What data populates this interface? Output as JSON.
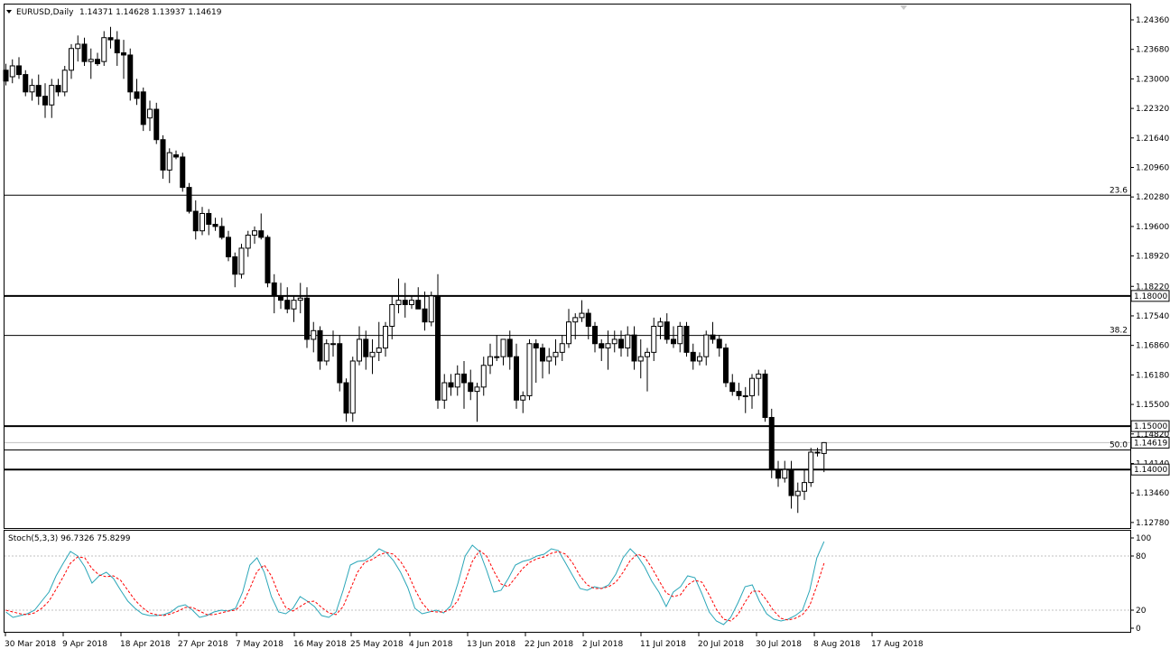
{
  "header": {
    "symbol": "EURUSD,Daily",
    "ohlc": "1.14371 1.14628 1.13937 1.14619",
    "menu_icon": "triangle-down-icon",
    "shift_icon": "chart-shift-triangle-icon"
  },
  "colors": {
    "background": "#ffffff",
    "frame": "#000000",
    "bull_candle": "#ffffff",
    "bear_candle": "#000000",
    "stoch_main": "#2aa6b8",
    "stoch_signal": "#ff0000",
    "level_line": "#c0c0c0"
  },
  "chart_data": [
    {
      "type": "candlestick",
      "title": "EURUSD,Daily",
      "ylim": [
        1.2744,
        1.2467
      ],
      "y_ticks": [
        "1.24360",
        "1.23680",
        "1.23000",
        "1.22320",
        "1.21640",
        "1.20960",
        "1.20280",
        "1.19600",
        "1.18920",
        "1.18220",
        "1.17540",
        "1.16860",
        "1.16180",
        "1.15500",
        "1.14820",
        "1.14140",
        "1.13460",
        "1.12780"
      ],
      "x_ticks": [
        "30 Mar 2018",
        "9 Apr 2018",
        "18 Apr 2018",
        "27 Apr 2018",
        "7 May 2018",
        "16 May 2018",
        "25 May 2018",
        "4 Jun 2018",
        "13 Jun 2018",
        "22 Jun 2018",
        "2 Jul 2018",
        "11 Jul 2018",
        "20 Jul 2018",
        "30 Jul 2018",
        "8 Aug 2018",
        "17 Aug 2018"
      ],
      "candles": [
        [
          1.232,
          1.2335,
          1.2285,
          1.2295
        ],
        [
          1.2305,
          1.2345,
          1.229,
          1.233
        ],
        [
          1.233,
          1.235,
          1.23,
          1.231
        ],
        [
          1.231,
          1.232,
          1.226,
          1.227
        ],
        [
          1.227,
          1.23,
          1.225,
          1.2285
        ],
        [
          1.2285,
          1.231,
          1.224,
          1.226
        ],
        [
          1.226,
          1.229,
          1.221,
          1.224
        ],
        [
          1.224,
          1.23,
          1.221,
          1.2285
        ],
        [
          1.2285,
          1.23,
          1.226,
          1.227
        ],
        [
          1.227,
          1.233,
          1.226,
          1.232
        ],
        [
          1.232,
          1.238,
          1.23,
          1.237
        ],
        [
          1.237,
          1.24,
          1.234,
          1.238
        ],
        [
          1.238,
          1.2395,
          1.233,
          1.234
        ],
        [
          1.234,
          1.237,
          1.23,
          1.2345
        ],
        [
          1.2345,
          1.236,
          1.233,
          1.2335
        ],
        [
          1.234,
          1.241,
          1.233,
          1.2395
        ],
        [
          1.2395,
          1.242,
          1.237,
          1.239
        ],
        [
          1.239,
          1.241,
          1.233,
          1.236
        ],
        [
          1.236,
          1.239,
          1.23,
          1.2355
        ],
        [
          1.2355,
          1.237,
          1.225,
          1.227
        ],
        [
          1.227,
          1.23,
          1.224,
          1.2255
        ],
        [
          1.227,
          1.228,
          1.218,
          1.2195
        ],
        [
          1.221,
          1.225,
          1.218,
          1.223
        ],
        [
          1.223,
          1.2245,
          1.215,
          1.216
        ],
        [
          1.216,
          1.217,
          1.207,
          1.209
        ],
        [
          1.209,
          1.214,
          1.206,
          1.213
        ],
        [
          1.2125,
          1.2135,
          1.2115,
          1.212
        ],
        [
          1.212,
          1.213,
          1.204,
          1.205
        ],
        [
          1.205,
          1.206,
          1.199,
          1.1995
        ],
        [
          1.1995,
          1.202,
          1.193,
          1.195
        ],
        [
          1.195,
          1.2005,
          1.194,
          1.199
        ],
        [
          1.199,
          1.2,
          1.194,
          1.1965
        ],
        [
          1.1965,
          1.198,
          1.195,
          1.196
        ],
        [
          1.196,
          1.198,
          1.193,
          1.1935
        ],
        [
          1.1935,
          1.195,
          1.188,
          1.189
        ],
        [
          1.189,
          1.19,
          1.182,
          1.185
        ],
        [
          1.185,
          1.192,
          1.184,
          1.191
        ],
        [
          1.191,
          1.195,
          1.189,
          1.194
        ],
        [
          1.194,
          1.196,
          1.192,
          1.195
        ],
        [
          1.195,
          1.199,
          1.193,
          1.1935
        ],
        [
          1.1935,
          1.194,
          1.182,
          1.183
        ],
        [
          1.183,
          1.185,
          1.176,
          1.18
        ],
        [
          1.18,
          1.183,
          1.177,
          1.179
        ],
        [
          1.179,
          1.182,
          1.176,
          1.177
        ],
        [
          1.177,
          1.18,
          1.174,
          1.179
        ],
        [
          1.179,
          1.183,
          1.176,
          1.1795
        ],
        [
          1.1795,
          1.182,
          1.168,
          1.17
        ],
        [
          1.17,
          1.174,
          1.167,
          1.172
        ],
        [
          1.172,
          1.173,
          1.163,
          1.165
        ],
        [
          1.165,
          1.17,
          1.164,
          1.169
        ],
        [
          1.169,
          1.172,
          1.166,
          1.169
        ],
        [
          1.169,
          1.171,
          1.158,
          1.16
        ],
        [
          1.16,
          1.161,
          1.151,
          1.153
        ],
        [
          1.153,
          1.166,
          1.151,
          1.165
        ],
        [
          1.165,
          1.173,
          1.164,
          1.17
        ],
        [
          1.17,
          1.172,
          1.163,
          1.166
        ],
        [
          1.166,
          1.17,
          1.162,
          1.167
        ],
        [
          1.167,
          1.174,
          1.165,
          1.168
        ],
        [
          1.168,
          1.174,
          1.166,
          1.173
        ],
        [
          1.173,
          1.18,
          1.17,
          1.178
        ],
        [
          1.178,
          1.184,
          1.176,
          1.179
        ],
        [
          1.179,
          1.183,
          1.175,
          1.178
        ],
        [
          1.178,
          1.18,
          1.177,
          1.179
        ],
        [
          1.179,
          1.182,
          1.177,
          1.177
        ],
        [
          1.177,
          1.181,
          1.172,
          1.174
        ],
        [
          1.174,
          1.181,
          1.173,
          1.18
        ],
        [
          1.18,
          1.185,
          1.154,
          1.156
        ],
        [
          1.156,
          1.162,
          1.154,
          1.16
        ],
        [
          1.16,
          1.162,
          1.157,
          1.159
        ],
        [
          1.159,
          1.164,
          1.157,
          1.162
        ],
        [
          1.162,
          1.165,
          1.154,
          1.16
        ],
        [
          1.16,
          1.163,
          1.156,
          1.158
        ],
        [
          1.158,
          1.16,
          1.151,
          1.159
        ],
        [
          1.159,
          1.166,
          1.157,
          1.164
        ],
        [
          1.164,
          1.169,
          1.162,
          1.166
        ],
        [
          1.166,
          1.171,
          1.165,
          1.166
        ],
        [
          1.166,
          1.17,
          1.164,
          1.17
        ],
        [
          1.17,
          1.172,
          1.163,
          1.166
        ],
        [
          1.166,
          1.169,
          1.154,
          1.156
        ],
        [
          1.156,
          1.158,
          1.153,
          1.157
        ],
        [
          1.157,
          1.17,
          1.156,
          1.169
        ],
        [
          1.169,
          1.17,
          1.16,
          1.168
        ],
        [
          1.168,
          1.169,
          1.161,
          1.165
        ],
        [
          1.165,
          1.168,
          1.162,
          1.166
        ],
        [
          1.166,
          1.17,
          1.164,
          1.167
        ],
        [
          1.167,
          1.171,
          1.165,
          1.169
        ],
        [
          1.169,
          1.177,
          1.168,
          1.174
        ],
        [
          1.174,
          1.176,
          1.17,
          1.175
        ],
        [
          1.175,
          1.179,
          1.174,
          1.176
        ],
        [
          1.176,
          1.177,
          1.17,
          1.173
        ],
        [
          1.173,
          1.174,
          1.167,
          1.169
        ],
        [
          1.169,
          1.17,
          1.165,
          1.168
        ],
        [
          1.168,
          1.172,
          1.163,
          1.169
        ],
        [
          1.169,
          1.172,
          1.167,
          1.17
        ],
        [
          1.17,
          1.172,
          1.166,
          1.168
        ],
        [
          1.168,
          1.173,
          1.166,
          1.171
        ],
        [
          1.171,
          1.173,
          1.163,
          1.165
        ],
        [
          1.165,
          1.17,
          1.161,
          1.166
        ],
        [
          1.166,
          1.168,
          1.158,
          1.167
        ],
        [
          1.167,
          1.175,
          1.165,
          1.173
        ],
        [
          1.173,
          1.175,
          1.17,
          1.174
        ],
        [
          1.174,
          1.176,
          1.169,
          1.17
        ],
        [
          1.17,
          1.173,
          1.168,
          1.169
        ],
        [
          1.169,
          1.174,
          1.167,
          1.173
        ],
        [
          1.173,
          1.174,
          1.166,
          1.167
        ],
        [
          1.167,
          1.169,
          1.163,
          1.165
        ],
        [
          1.165,
          1.167,
          1.164,
          1.166
        ],
        [
          1.166,
          1.172,
          1.164,
          1.171
        ],
        [
          1.171,
          1.174,
          1.169,
          1.17
        ],
        [
          1.17,
          1.171,
          1.166,
          1.168
        ],
        [
          1.168,
          1.169,
          1.159,
          1.16
        ],
        [
          1.16,
          1.162,
          1.157,
          1.158
        ],
        [
          1.158,
          1.16,
          1.156,
          1.157
        ],
        [
          1.157,
          1.159,
          1.153,
          1.157
        ],
        [
          1.157,
          1.162,
          1.154,
          1.161
        ],
        [
          1.161,
          1.163,
          1.157,
          1.162
        ],
        [
          1.162,
          1.163,
          1.151,
          1.152
        ],
        [
          1.152,
          1.154,
          1.138,
          1.14
        ],
        [
          1.14,
          1.142,
          1.136,
          1.138
        ],
        [
          1.138,
          1.142,
          1.137,
          1.14
        ],
        [
          1.14,
          1.142,
          1.131,
          1.134
        ],
        [
          1.134,
          1.137,
          1.13,
          1.135
        ],
        [
          1.135,
          1.14,
          1.133,
          1.137
        ],
        [
          1.137,
          1.145,
          1.136,
          1.144
        ],
        [
          1.144,
          1.145,
          1.143,
          1.144
        ],
        [
          1.1437,
          1.1463,
          1.1394,
          1.1462
        ]
      ],
      "levels": [
        {
          "value": 1.2032,
          "style": "thin",
          "label": "23.6",
          "tag": ""
        },
        {
          "value": 1.18,
          "style": "thick",
          "label": "",
          "tag": "1.18000"
        },
        {
          "value": 1.1709,
          "style": "thin",
          "label": "38.2",
          "tag": ""
        },
        {
          "value": 1.15,
          "style": "thick",
          "label": "",
          "tag": "1.15000"
        },
        {
          "value": 1.1462,
          "style": "bid",
          "label": "",
          "tag": "1.14619"
        },
        {
          "value": 1.1445,
          "style": "thin",
          "label": "50.0",
          "tag": ""
        },
        {
          "value": 1.14,
          "style": "thick",
          "label": "",
          "tag": "1.14000"
        }
      ]
    },
    {
      "type": "line",
      "title": "Stoch(5,3,3) 96.7326 75.8299",
      "ylim": [
        0,
        100
      ],
      "y_ticks": [
        "100",
        "80",
        "20",
        "0"
      ],
      "levels": [
        80,
        20
      ],
      "series": [
        {
          "name": "Main",
          "color": "#2aa6b8",
          "values": [
            18,
            12,
            14,
            16,
            20,
            30,
            40,
            58,
            72,
            85,
            80,
            68,
            50,
            58,
            62,
            55,
            42,
            30,
            22,
            16,
            14,
            14,
            15,
            18,
            24,
            26,
            20,
            12,
            14,
            18,
            20,
            19,
            22,
            40,
            70,
            78,
            62,
            35,
            18,
            16,
            22,
            35,
            30,
            24,
            14,
            12,
            18,
            42,
            70,
            74,
            75,
            80,
            88,
            84,
            75,
            62,
            45,
            22,
            16,
            18,
            20,
            17,
            25,
            50,
            80,
            92,
            85,
            64,
            40,
            42,
            55,
            70,
            74,
            76,
            80,
            82,
            88,
            86,
            72,
            58,
            44,
            42,
            46,
            44,
            48,
            60,
            78,
            88,
            80,
            68,
            52,
            40,
            24,
            40,
            46,
            58,
            56,
            38,
            18,
            8,
            4,
            12,
            28,
            46,
            48,
            30,
            16,
            10,
            8,
            10,
            14,
            20,
            42,
            78,
            96
          ]
        },
        {
          "name": "Signal",
          "color": "#ff0000",
          "values": [
            20,
            18,
            16,
            15,
            17,
            22,
            30,
            43,
            57,
            72,
            79,
            78,
            66,
            59,
            57,
            58,
            53,
            42,
            31,
            23,
            17,
            15,
            14,
            16,
            19,
            23,
            23,
            19,
            15,
            15,
            17,
            19,
            20,
            27,
            44,
            63,
            70,
            58,
            38,
            23,
            19,
            24,
            29,
            30,
            23,
            17,
            15,
            24,
            43,
            62,
            73,
            76,
            81,
            84,
            82,
            74,
            61,
            43,
            28,
            19,
            18,
            18,
            21,
            31,
            52,
            74,
            86,
            80,
            63,
            49,
            46,
            56,
            66,
            73,
            77,
            79,
            83,
            85,
            82,
            72,
            58,
            48,
            44,
            44,
            46,
            51,
            62,
            75,
            82,
            79,
            67,
            53,
            39,
            35,
            37,
            48,
            53,
            51,
            37,
            21,
            10,
            8,
            15,
            29,
            41,
            41,
            31,
            19,
            11,
            9,
            11,
            15,
            25,
            47,
            72
          ]
        }
      ]
    }
  ]
}
